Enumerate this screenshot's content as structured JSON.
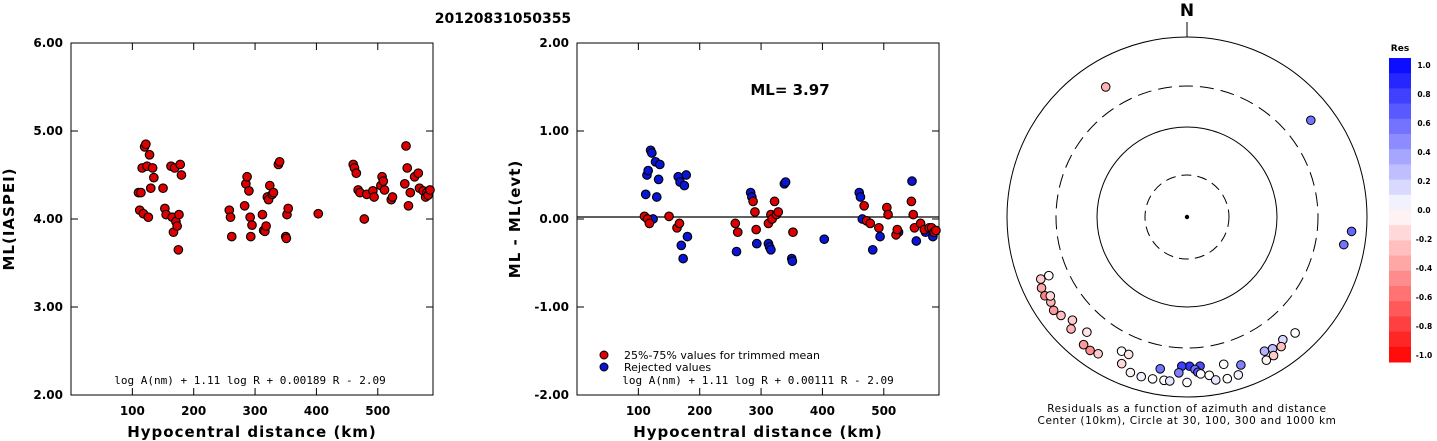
{
  "title": "20120831050355",
  "chart_data": [
    {
      "type": "scatter",
      "xlabel": "Hypocentral distance (km)",
      "ylabel": "ML(IASPEI)",
      "xlim": [
        0,
        590
      ],
      "ylim": [
        2.0,
        6.0
      ],
      "x_ticks": [
        100,
        200,
        300,
        400,
        500
      ],
      "x_tick_labels": [
        "100",
        "200",
        "300",
        "400",
        "500"
      ],
      "y_ticks": [
        2,
        3,
        4,
        5,
        6
      ],
      "y_tick_labels": [
        "2.00",
        "3.00",
        "4.00",
        "5.00",
        "6.00"
      ],
      "formula": "log A(nm) + 1.11 log R + 0.00189 R - 2.09",
      "points": [
        [
          110,
          4.3
        ],
        [
          112,
          4.1
        ],
        [
          114,
          4.3
        ],
        [
          116,
          4.58
        ],
        [
          118,
          4.06
        ],
        [
          120,
          4.82
        ],
        [
          122,
          4.85
        ],
        [
          124,
          4.6
        ],
        [
          126,
          4.02
        ],
        [
          128,
          4.73
        ],
        [
          130,
          4.35
        ],
        [
          133,
          4.58
        ],
        [
          135,
          4.47
        ],
        [
          150,
          4.35
        ],
        [
          153,
          4.12
        ],
        [
          155,
          4.05
        ],
        [
          163,
          4.6
        ],
        [
          165,
          4.02
        ],
        [
          167,
          3.85
        ],
        [
          169,
          4.58
        ],
        [
          171,
          3.97
        ],
        [
          173,
          3.92
        ],
        [
          175,
          3.65
        ],
        [
          176,
          4.05
        ],
        [
          178,
          4.62
        ],
        [
          180,
          4.5
        ],
        [
          258,
          4.1
        ],
        [
          260,
          4.02
        ],
        [
          262,
          3.8
        ],
        [
          283,
          4.15
        ],
        [
          285,
          4.4
        ],
        [
          287,
          4.48
        ],
        [
          290,
          4.32
        ],
        [
          292,
          4.02
        ],
        [
          293,
          3.8
        ],
        [
          295,
          3.93
        ],
        [
          312,
          4.05
        ],
        [
          314,
          3.87
        ],
        [
          316,
          3.86
        ],
        [
          318,
          3.92
        ],
        [
          320,
          4.25
        ],
        [
          322,
          4.22
        ],
        [
          324,
          4.38
        ],
        [
          328,
          4.28
        ],
        [
          330,
          4.3
        ],
        [
          338,
          4.62
        ],
        [
          340,
          4.65
        ],
        [
          350,
          3.8
        ],
        [
          351,
          3.78
        ],
        [
          352,
          4.05
        ],
        [
          354,
          4.12
        ],
        [
          403,
          4.06
        ],
        [
          460,
          4.62
        ],
        [
          462,
          4.58
        ],
        [
          465,
          4.52
        ],
        [
          468,
          4.33
        ],
        [
          471,
          4.3
        ],
        [
          478,
          4.0
        ],
        [
          482,
          4.28
        ],
        [
          492,
          4.32
        ],
        [
          494,
          4.25
        ],
        [
          505,
          4.38
        ],
        [
          507,
          4.48
        ],
        [
          509,
          4.43
        ],
        [
          511,
          4.33
        ],
        [
          522,
          4.22
        ],
        [
          524,
          4.25
        ],
        [
          544,
          4.4
        ],
        [
          546,
          4.83
        ],
        [
          548,
          4.58
        ],
        [
          550,
          4.15
        ],
        [
          553,
          4.3
        ],
        [
          560,
          4.48
        ],
        [
          566,
          4.52
        ],
        [
          568,
          4.35
        ],
        [
          574,
          4.32
        ],
        [
          578,
          4.25
        ],
        [
          580,
          4.3
        ],
        [
          582,
          4.27
        ],
        [
          585,
          4.33
        ]
      ]
    },
    {
      "type": "scatter",
      "xlabel": "Hypocentral distance (km)",
      "ylabel": "ML - ML(evt)",
      "xlim": [
        0,
        590
      ],
      "ylim": [
        -2.0,
        2.0
      ],
      "x_ticks": [
        100,
        200,
        300,
        400,
        500
      ],
      "x_tick_labels": [
        "100",
        "200",
        "300",
        "400",
        "500"
      ],
      "y_ticks": [
        -2,
        -1,
        0,
        1,
        2
      ],
      "y_tick_labels": [
        "-2.00",
        "-1.00",
        "0.00",
        "1.00",
        "2.00"
      ],
      "annotation": "ML=  3.97",
      "formula": "log A(nm) + 1.11 log R + 0.00111 R - 2.09",
      "series": [
        {
          "name": "25%-75% values for trimmed mean",
          "color": "#dd0000",
          "points": [
            [
              110,
              0.03
            ],
            [
              115,
              0.0
            ],
            [
              118,
              -0.05
            ],
            [
              150,
              0.03
            ],
            [
              163,
              -0.1
            ],
            [
              167,
              -0.05
            ],
            [
              258,
              -0.05
            ],
            [
              262,
              -0.15
            ],
            [
              287,
              0.2
            ],
            [
              290,
              0.08
            ],
            [
              292,
              -0.12
            ],
            [
              312,
              -0.05
            ],
            [
              316,
              0.05
            ],
            [
              318,
              0.0
            ],
            [
              322,
              0.2
            ],
            [
              325,
              0.05
            ],
            [
              328,
              0.08
            ],
            [
              352,
              -0.15
            ],
            [
              468,
              0.15
            ],
            [
              472,
              -0.02
            ],
            [
              478,
              -0.05
            ],
            [
              492,
              -0.1
            ],
            [
              505,
              0.13
            ],
            [
              507,
              0.05
            ],
            [
              520,
              -0.18
            ],
            [
              522,
              -0.12
            ],
            [
              545,
              0.2
            ],
            [
              548,
              0.05
            ],
            [
              550,
              -0.1
            ],
            [
              560,
              -0.05
            ],
            [
              566,
              -0.12
            ],
            [
              574,
              -0.1
            ],
            [
              578,
              -0.1
            ],
            [
              582,
              -0.15
            ],
            [
              585,
              -0.13
            ]
          ]
        },
        {
          "name": "Rejected values",
          "color": "#0a14d4",
          "points": [
            [
              112,
              0.28
            ],
            [
              114,
              0.5
            ],
            [
              116,
              0.55
            ],
            [
              120,
              0.78
            ],
            [
              122,
              0.75
            ],
            [
              124,
              0.0
            ],
            [
              128,
              0.65
            ],
            [
              130,
              0.25
            ],
            [
              133,
              0.45
            ],
            [
              135,
              0.62
            ],
            [
              165,
              0.48
            ],
            [
              168,
              0.42
            ],
            [
              170,
              -0.3
            ],
            [
              173,
              -0.45
            ],
            [
              175,
              0.38
            ],
            [
              178,
              0.5
            ],
            [
              180,
              -0.2
            ],
            [
              260,
              -0.37
            ],
            [
              283,
              0.3
            ],
            [
              285,
              0.25
            ],
            [
              293,
              -0.28
            ],
            [
              312,
              -0.28
            ],
            [
              314,
              -0.32
            ],
            [
              316,
              -0.35
            ],
            [
              338,
              0.4
            ],
            [
              340,
              0.42
            ],
            [
              350,
              -0.45
            ],
            [
              351,
              -0.48
            ],
            [
              403,
              -0.23
            ],
            [
              460,
              0.3
            ],
            [
              462,
              0.25
            ],
            [
              465,
              0.0
            ],
            [
              482,
              -0.35
            ],
            [
              494,
              -0.2
            ],
            [
              524,
              -0.15
            ],
            [
              546,
              0.43
            ],
            [
              553,
              -0.25
            ],
            [
              568,
              -0.15
            ],
            [
              580,
              -0.2
            ]
          ]
        }
      ]
    },
    {
      "type": "scatter",
      "subtype": "polar",
      "north_label": "N",
      "caption_lines": [
        "Residuals as a function of azimuth and distance",
        "Center (10km), Circle at 30, 100, 300 and 1000 km"
      ],
      "colorbar": {
        "title": "Res",
        "range": [
          -1.0,
          1.0
        ],
        "labels": [
          "1.0",
          "0.8",
          "0.6",
          "0.4",
          "0.2",
          "0.0",
          "-0.2",
          "-0.4",
          "-0.6",
          "-0.8",
          "-1.0"
        ]
      },
      "points": [
        {
          "az": 328,
          "dist": 520,
          "res": -0.3
        },
        {
          "az": 52,
          "dist": 570,
          "res": 0.55
        },
        {
          "az": 95,
          "dist": 695,
          "res": 0.6
        },
        {
          "az": 100,
          "dist": 600,
          "res": 0.55
        },
        {
          "az": 247,
          "dist": 480,
          "res": 0.0
        },
        {
          "az": 247,
          "dist": 595,
          "res": -0.2
        },
        {
          "az": 244,
          "dist": 640,
          "res": -0.35
        },
        {
          "az": 241,
          "dist": 650,
          "res": -0.5
        },
        {
          "az": 238,
          "dist": 620,
          "res": -0.3
        },
        {
          "az": 240,
          "dist": 580,
          "res": -0.15
        },
        {
          "az": 235,
          "dist": 655,
          "res": -0.4
        },
        {
          "az": 232,
          "dist": 610,
          "res": -0.25
        },
        {
          "az": 228,
          "dist": 530,
          "res": -0.2
        },
        {
          "az": 221,
          "dist": 510,
          "res": -0.1
        },
        {
          "az": 226,
          "dist": 630,
          "res": -0.3
        },
        {
          "az": 219,
          "dist": 680,
          "res": -0.4
        },
        {
          "az": 216,
          "dist": 690,
          "res": -0.45
        },
        {
          "az": 213,
          "dist": 660,
          "res": -0.2
        },
        {
          "az": 206,
          "dist": 470,
          "res": 0.0
        },
        {
          "az": 203,
          "dist": 470,
          "res": -0.1
        },
        {
          "az": 204,
          "dist": 620,
          "res": -0.15
        },
        {
          "az": 200,
          "dist": 700,
          "res": -0.05
        },
        {
          "az": 196,
          "dist": 710,
          "res": 0.05
        },
        {
          "az": 192,
          "dist": 700,
          "res": 0.0
        },
        {
          "az": 188,
          "dist": 690,
          "res": 0.0
        },
        {
          "az": 186,
          "dist": 690,
          "res": 0.1
        },
        {
          "az": 180,
          "dist": 700,
          "res": 0.0
        },
        {
          "az": 172,
          "dist": 610,
          "res": 0.0
        },
        {
          "az": 170,
          "dist": 700,
          "res": 0.1
        },
        {
          "az": 166,
          "dist": 720,
          "res": 0.0
        },
        {
          "az": 162,
          "dist": 710,
          "res": 0.05
        },
        {
          "az": 175,
          "dist": 475,
          "res": 0.7
        },
        {
          "az": 179,
          "dist": 470,
          "res": 0.8
        },
        {
          "az": 182,
          "dist": 470,
          "res": 0.75
        },
        {
          "az": 177,
          "dist": 510,
          "res": 0.55
        },
        {
          "az": 176,
          "dist": 550,
          "res": 0.65
        },
        {
          "az": 183,
          "dist": 555,
          "res": 0.5
        },
        {
          "az": 190,
          "dist": 530,
          "res": 0.55
        },
        {
          "az": 175,
          "dist": 575,
          "res": 0.0
        },
        {
          "az": 166,
          "dist": 500,
          "res": 0.0
        },
        {
          "az": 160,
          "dist": 575,
          "res": 0.5
        },
        {
          "az": 150,
          "dist": 540,
          "res": 0.3
        },
        {
          "az": 147,
          "dist": 570,
          "res": 0.25
        },
        {
          "az": 142,
          "dist": 550,
          "res": 0.15
        },
        {
          "az": 137,
          "dist": 590,
          "res": 0.0
        },
        {
          "az": 151,
          "dist": 670,
          "res": -0.05
        },
        {
          "az": 148,
          "dist": 665,
          "res": -0.2
        },
        {
          "az": 144,
          "dist": 615,
          "res": -0.25
        }
      ]
    }
  ]
}
